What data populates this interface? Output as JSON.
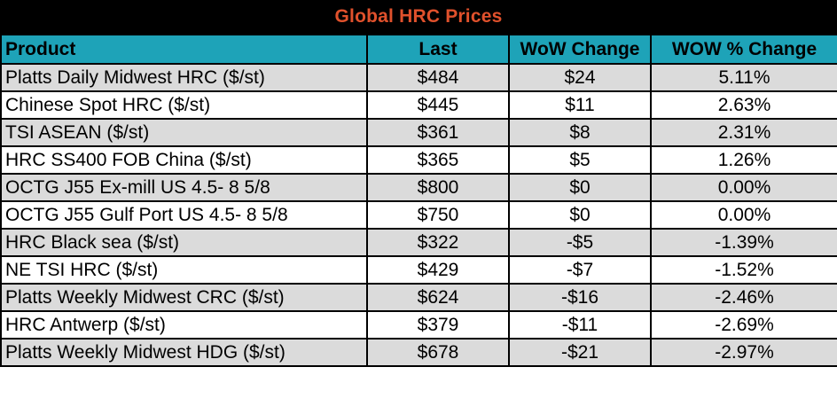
{
  "title": "Global HRC Prices",
  "colors": {
    "title_background": "#000000",
    "title_text": "#e0512c",
    "header_background": "#1ea3b8",
    "odd_row_background": "#dbdbdb",
    "even_row_background": "#ffffff",
    "border": "#000000"
  },
  "table": {
    "headers": [
      "Product",
      "Last",
      "WoW Change",
      "WOW % Change"
    ],
    "rows": [
      {
        "product": "Platts Daily Midwest HRC ($/st)",
        "last": "$484",
        "wow_change": "$24",
        "wow_pct": "5.11%"
      },
      {
        "product": "Chinese Spot HRC ($/st)",
        "last": "$445",
        "wow_change": "$11",
        "wow_pct": "2.63%"
      },
      {
        "product": "TSI ASEAN ($/st)",
        "last": "$361",
        "wow_change": "$8",
        "wow_pct": "2.31%"
      },
      {
        "product": "HRC SS400 FOB China ($/st)",
        "last": "$365",
        "wow_change": "$5",
        "wow_pct": "1.26%"
      },
      {
        "product": "OCTG J55 Ex-mill US 4.5- 8 5/8",
        "last": "$800",
        "wow_change": "$0",
        "wow_pct": "0.00%"
      },
      {
        "product": "OCTG J55 Gulf Port US 4.5- 8 5/8",
        "last": "$750",
        "wow_change": "$0",
        "wow_pct": "0.00%"
      },
      {
        "product": "HRC Black sea ($/st)",
        "last": "$322",
        "wow_change": "-$5",
        "wow_pct": "-1.39%"
      },
      {
        "product": "NE TSI HRC ($/st)",
        "last": "$429",
        "wow_change": "-$7",
        "wow_pct": "-1.52%"
      },
      {
        "product": "Platts Weekly Midwest CRC ($/st)",
        "last": "$624",
        "wow_change": "-$16",
        "wow_pct": "-2.46%"
      },
      {
        "product": "HRC Antwerp ($/st)",
        "last": "$379",
        "wow_change": "-$11",
        "wow_pct": "-2.69%"
      },
      {
        "product": "Platts Weekly Midwest HDG ($/st)",
        "last": "$678",
        "wow_change": "-$21",
        "wow_pct": "-2.97%"
      }
    ]
  }
}
